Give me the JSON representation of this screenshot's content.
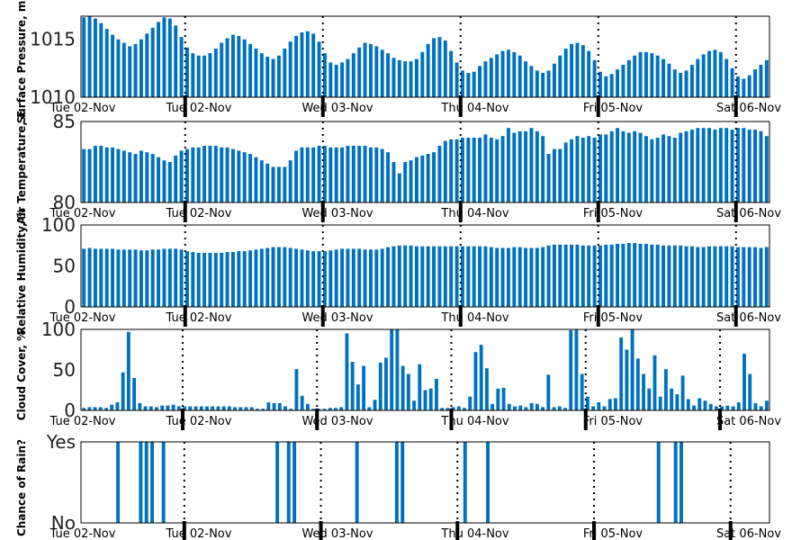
{
  "x_tick_labels": [
    "Tue 02-Nov",
    "Tue 02-Nov",
    "Wed 03-Nov",
    "Thu 04-Nov",
    "Fri 05-Nov",
    "Sat 06-Nov"
  ],
  "colors": {
    "bar": "#0072BD",
    "axis": "#000000"
  },
  "chart_data": [
    {
      "type": "bar",
      "title": "",
      "xlabel": "",
      "ylabel": "Surface Pressure, m",
      "ylim": [
        1010,
        1017
      ],
      "yticks": [
        1010,
        1015
      ],
      "ytick_labels": [
        "1010",
        "1015"
      ],
      "hours": "0-124 (hourly)",
      "values": [
        1016.9,
        1017.1,
        1016.8,
        1016.4,
        1015.9,
        1015.4,
        1015.0,
        1014.7,
        1014.4,
        1014.6,
        1015.0,
        1015.5,
        1016.0,
        1016.5,
        1016.9,
        1016.8,
        1016.2,
        1015.2,
        1014.3,
        1013.8,
        1013.6,
        1013.6,
        1013.8,
        1014.2,
        1014.7,
        1015.1,
        1015.4,
        1015.3,
        1015.0,
        1014.6,
        1014.2,
        1013.8,
        1013.5,
        1013.3,
        1013.6,
        1014.2,
        1014.8,
        1015.3,
        1015.6,
        1015.7,
        1015.5,
        1014.8,
        1013.8,
        1013.0,
        1012.8,
        1013.0,
        1013.3,
        1013.8,
        1014.3,
        1014.7,
        1014.6,
        1014.4,
        1014.1,
        1013.8,
        1013.4,
        1013.2,
        1013.1,
        1013.1,
        1013.3,
        1013.9,
        1014.6,
        1015.1,
        1015.2,
        1014.9,
        1014.0,
        1013.0,
        1012.3,
        1012.1,
        1012.2,
        1012.7,
        1013.1,
        1013.4,
        1013.7,
        1014.0,
        1014.1,
        1013.9,
        1013.6,
        1013.1,
        1012.7,
        1012.3,
        1012.1,
        1012.3,
        1012.9,
        1013.6,
        1014.2,
        1014.6,
        1014.7,
        1014.5,
        1014.0,
        1013.2,
        1012.2,
        1011.8,
        1012.0,
        1012.4,
        1012.8,
        1013.2,
        1013.6,
        1013.9,
        1013.9,
        1013.8,
        1013.6,
        1013.3,
        1012.9,
        1012.4,
        1012.1,
        1012.3,
        1012.8,
        1013.3,
        1013.7,
        1014.0,
        1014.1,
        1013.9,
        1013.3,
        1012.5,
        1011.8,
        1011.6,
        1011.9,
        1012.4,
        1012.8,
        1013.2
      ],
      "notes": "hourly samples over ~5 days"
    },
    {
      "type": "bar",
      "title": "",
      "xlabel": "",
      "ylabel": "Air Temperature, F",
      "ylim": [
        80,
        85
      ],
      "yticks": [
        80,
        85
      ],
      "ytick_labels": [
        "80",
        "85"
      ],
      "values": [
        83.3,
        83.3,
        83.5,
        83.5,
        83.4,
        83.4,
        83.3,
        83.2,
        83.1,
        83.0,
        83.2,
        83.1,
        83.0,
        82.8,
        82.6,
        82.5,
        82.9,
        83.2,
        83.3,
        83.4,
        83.4,
        83.5,
        83.5,
        83.5,
        83.4,
        83.4,
        83.3,
        83.2,
        83.1,
        83.0,
        82.8,
        82.6,
        82.4,
        82.2,
        82.2,
        82.2,
        82.6,
        83.2,
        83.4,
        83.4,
        83.4,
        83.5,
        83.5,
        83.4,
        83.4,
        83.4,
        83.5,
        83.5,
        83.5,
        83.5,
        83.4,
        83.4,
        83.3,
        83.1,
        82.5,
        81.8,
        82.5,
        82.6,
        82.8,
        82.9,
        83.0,
        83.1,
        83.5,
        83.8,
        83.9,
        83.9,
        84.0,
        84.0,
        84.0,
        84.0,
        84.2,
        84.0,
        83.9,
        84.1,
        84.6,
        84.3,
        84.4,
        84.4,
        84.6,
        84.4,
        84.1,
        83.0,
        83.3,
        83.3,
        83.7,
        83.9,
        84.1,
        84.0,
        84.1,
        84.0,
        84.2,
        84.2,
        84.4,
        84.6,
        84.4,
        84.3,
        84.4,
        84.3,
        84.1,
        83.9,
        84.0,
        84.2,
        84.1,
        84.0,
        84.3,
        84.4,
        84.5,
        84.6,
        84.6,
        84.6,
        84.5,
        84.6,
        84.6,
        84.5,
        84.6,
        84.6,
        84.5,
        84.5,
        84.4,
        84.1
      ],
      "notes": "hourly"
    },
    {
      "type": "bar",
      "title": "",
      "xlabel": "",
      "ylabel": "Relative Humidity, %",
      "ylim": [
        0,
        100
      ],
      "yticks": [
        0,
        50,
        100
      ],
      "ytick_labels": [
        "0",
        "50",
        "100"
      ],
      "values": [
        71,
        72,
        71,
        71,
        71,
        71,
        70,
        70,
        70,
        70,
        69,
        69,
        70,
        70,
        71,
        71,
        71,
        70,
        68,
        67,
        66,
        66,
        66,
        66,
        66,
        67,
        67,
        68,
        68,
        69,
        70,
        71,
        72,
        73,
        73,
        73,
        72,
        71,
        70,
        69,
        68,
        68,
        68,
        69,
        70,
        71,
        71,
        71,
        71,
        70,
        70,
        70,
        71,
        73,
        74,
        75,
        75,
        75,
        74,
        74,
        74,
        74,
        74,
        74,
        74,
        74,
        74,
        74,
        74,
        74,
        74,
        73,
        72,
        72,
        72,
        73,
        73,
        72,
        72,
        72,
        73,
        75,
        76,
        76,
        76,
        76,
        76,
        75,
        75,
        75,
        75,
        76,
        76,
        77,
        77,
        78,
        78,
        77,
        77,
        76,
        76,
        75,
        75,
        75,
        75,
        74,
        74,
        73,
        73,
        74,
        74,
        74,
        74,
        74,
        73,
        73,
        73,
        73,
        72,
        73
      ],
      "notes": "hourly"
    },
    {
      "type": "bar",
      "title": "",
      "xlabel": "",
      "ylabel": "Cloud Cover, %",
      "ylim": [
        0,
        100
      ],
      "yticks": [
        0,
        50,
        100
      ],
      "ytick_labels": [
        "0",
        "50",
        "100"
      ],
      "values": [
        3,
        4,
        4,
        4,
        3,
        7,
        10,
        47,
        97,
        40,
        9,
        5,
        5,
        4,
        6,
        6,
        7,
        5,
        5,
        5,
        5,
        5,
        5,
        5,
        5,
        5,
        5,
        4,
        4,
        4,
        4,
        2,
        2,
        10,
        9,
        9,
        5,
        2,
        51,
        18,
        8,
        2,
        2,
        2,
        3,
        3,
        4,
        95,
        60,
        32,
        55,
        4,
        13,
        59,
        65,
        100,
        100,
        55,
        45,
        12,
        57,
        25,
        27,
        39,
        3,
        3,
        4,
        5,
        3,
        17,
        72,
        81,
        52,
        8,
        27,
        28,
        8,
        5,
        6,
        4,
        9,
        8,
        4,
        44,
        4,
        5,
        3,
        99,
        100,
        45,
        17,
        5,
        10,
        5,
        14,
        15,
        90,
        75,
        100,
        64,
        45,
        27,
        68,
        17,
        51,
        27,
        20,
        43,
        14,
        6,
        15,
        12,
        8,
        5,
        5,
        6,
        5,
        10,
        70,
        45,
        9,
        5,
        12
      ],
      "notes": "hourly"
    },
    {
      "type": "bar",
      "title": "",
      "xlabel": "",
      "ylabel": "Chance of Rain?",
      "ylim": [
        0,
        1
      ],
      "yticks": [
        0,
        1
      ],
      "ytick_labels": [
        "No",
        "Yes"
      ],
      "values": [
        0,
        0,
        0,
        0,
        0,
        0,
        1,
        0,
        0,
        0,
        1,
        1,
        1,
        0,
        1,
        0,
        0,
        0,
        0,
        0,
        0,
        0,
        0,
        0,
        0,
        0,
        0,
        0,
        0,
        0,
        0,
        0,
        0,
        0,
        1,
        0,
        1,
        1,
        0,
        0,
        0,
        0,
        0,
        0,
        0,
        0,
        0,
        0,
        1,
        0,
        0,
        0,
        0,
        0,
        0,
        1,
        1,
        0,
        0,
        0,
        0,
        0,
        0,
        0,
        0,
        0,
        0,
        1,
        0,
        0,
        0,
        1,
        0,
        0,
        0,
        0,
        0,
        0,
        0,
        0,
        0,
        0,
        0,
        0,
        0,
        0,
        0,
        0,
        0,
        0,
        0,
        0,
        0,
        0,
        0,
        0,
        0,
        0,
        0,
        0,
        0,
        1,
        0,
        0,
        1,
        1,
        0,
        0,
        0,
        0,
        0,
        0,
        0,
        0,
        0,
        0,
        0,
        0,
        0,
        0,
        0
      ],
      "notes": "binary rain indicator per hour"
    }
  ]
}
